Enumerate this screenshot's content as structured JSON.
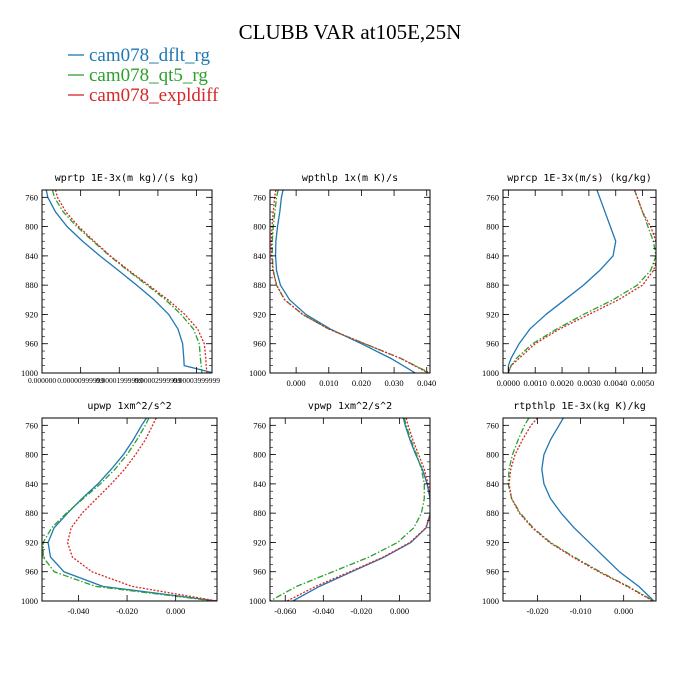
{
  "figure": {
    "title": "CLUBB VAR at105E,25N"
  },
  "legend": [
    {
      "label": "cam078_dflt_rg",
      "color": "#1f77b4",
      "dash": "solid"
    },
    {
      "label": "cam078_qt5_rg",
      "color": "#2ca02c",
      "dash": "dashdot"
    },
    {
      "label": "cam078_expldiff",
      "color": "#d62728",
      "dash": "dot"
    }
  ],
  "chart_data": [
    {
      "type": "line",
      "title": "wprtp  1E-3x(m kg)/(s kg)",
      "ylim": [
        1000,
        750
      ],
      "yticks": [
        760,
        800,
        840,
        880,
        920,
        960,
        1000
      ],
      "xlim": [
        0.0,
        4.4e-05
      ],
      "xticks": [
        0.0,
        1e-05,
        2e-05,
        3e-05,
        4e-05
      ],
      "xtick_labels": [
        "0.000000",
        "0.00000999999",
        "0.00001999999",
        "0.00002999999",
        "0.00003999999"
      ],
      "y": [
        750,
        760,
        780,
        800,
        820,
        840,
        860,
        880,
        900,
        920,
        940,
        960,
        980,
        990,
        1000
      ],
      "series": [
        {
          "name": "cam078_dflt_rg",
          "x": [
            1.1e-06,
            1.5e-06,
            3.5e-06,
            6.5e-06,
            1.05e-05,
            1.5e-05,
            1.98e-05,
            2.45e-05,
            2.9e-05,
            3.28e-05,
            3.52e-05,
            3.64e-05,
            3.67e-05,
            3.68e-05,
            4.45e-05
          ]
        },
        {
          "name": "cam078_qt5_rg",
          "x": [
            2.7e-06,
            3.2e-06,
            5.5e-06,
            9e-06,
            1.32e-05,
            1.75e-05,
            2.22e-05,
            2.72e-05,
            3.2e-05,
            3.6e-05,
            3.92e-05,
            4.07e-05,
            4.1e-05,
            4.12e-05,
            4.14e-05
          ]
        },
        {
          "name": "cam078_expldiff",
          "x": [
            3.5e-06,
            4e-06,
            6.2e-06,
            9.5e-06,
            1.35e-05,
            1.77e-05,
            2.25e-05,
            2.76e-05,
            3.26e-05,
            3.7e-05,
            4.03e-05,
            4.2e-05,
            4.24e-05,
            4.25e-05,
            4.27e-05
          ]
        }
      ]
    },
    {
      "type": "line",
      "title": "wpthlp  1x(m K)/s",
      "ylim": [
        1000,
        750
      ],
      "yticks": [
        760,
        800,
        840,
        880,
        920,
        960,
        1000
      ],
      "xlim": [
        -0.008,
        0.041
      ],
      "xticks": [
        0.0,
        0.01,
        0.02,
        0.03,
        0.04
      ],
      "xtick_labels": [
        "0.000",
        "0.010",
        "0.020",
        "0.030",
        "0.040"
      ],
      "y": [
        750,
        760,
        780,
        800,
        820,
        840,
        860,
        880,
        900,
        920,
        940,
        960,
        980,
        1000
      ],
      "series": [
        {
          "name": "cam078_dflt_rg",
          "x": [
            -0.004,
            -0.0045,
            -0.005,
            -0.0057,
            -0.0062,
            -0.0063,
            -0.006,
            -0.0048,
            -0.002,
            0.003,
            0.0105,
            0.02,
            0.029,
            0.0365
          ]
        },
        {
          "name": "cam078_qt5_rg",
          "x": [
            -0.0055,
            -0.006,
            -0.0065,
            -0.007,
            -0.0073,
            -0.0073,
            -0.007,
            -0.006,
            -0.0035,
            0.002,
            0.01,
            0.021,
            0.032,
            0.041
          ]
        },
        {
          "name": "cam078_expldiff",
          "x": [
            -0.0062,
            -0.0066,
            -0.007,
            -0.0074,
            -0.0076,
            -0.0075,
            -0.0071,
            -0.006,
            -0.0035,
            0.002,
            0.01,
            0.021,
            0.032,
            0.0405
          ]
        }
      ]
    },
    {
      "type": "line",
      "title": "wprcp  1E-3x(m/s) (kg/kg)",
      "ylim": [
        1000,
        750
      ],
      "yticks": [
        760,
        800,
        840,
        880,
        920,
        960,
        1000
      ],
      "xlim": [
        -0.0002,
        0.0055
      ],
      "xticks": [
        0.0,
        0.001,
        0.002,
        0.003,
        0.004,
        0.005
      ],
      "xtick_labels": [
        "0.0000",
        "0.0010",
        "0.0020",
        "0.0030",
        "0.0040",
        "0.0050"
      ],
      "y": [
        750,
        760,
        780,
        800,
        820,
        840,
        860,
        880,
        900,
        920,
        940,
        960,
        980,
        990,
        1000
      ],
      "series": [
        {
          "name": "cam078_dflt_rg",
          "x": [
            0.0033,
            0.0034,
            0.0036,
            0.0038,
            0.004,
            0.0039,
            0.0034,
            0.0028,
            0.0021,
            0.0014,
            0.0008,
            0.0004,
            0.0001,
            0.0,
            0.0
          ]
        },
        {
          "name": "cam078_qt5_rg",
          "x": [
            0.0047,
            0.0048,
            0.005,
            0.0052,
            0.0054,
            0.0055,
            0.0053,
            0.0048,
            0.0039,
            0.0028,
            0.0018,
            0.0009,
            0.0003,
            0.0001,
            0.0
          ]
        },
        {
          "name": "cam078_expldiff",
          "x": [
            0.0047,
            0.0048,
            0.005,
            0.0053,
            0.0055,
            0.0056,
            0.0054,
            0.005,
            0.0041,
            0.003,
            0.0019,
            0.001,
            0.0004,
            0.0001,
            0.0
          ]
        }
      ]
    },
    {
      "type": "line",
      "title": "upwp  1xm^2/s^2",
      "ylim": [
        1000,
        750
      ],
      "yticks": [
        760,
        800,
        840,
        880,
        920,
        960,
        1000
      ],
      "xlim": [
        -0.055,
        0.017
      ],
      "xticks": [
        -0.04,
        -0.02,
        0.0
      ],
      "xtick_labels": [
        "-0.040",
        "-0.020",
        "0.000"
      ],
      "y": [
        750,
        760,
        780,
        800,
        820,
        840,
        860,
        880,
        900,
        920,
        940,
        960,
        980,
        1000
      ],
      "series": [
        {
          "name": "cam078_dflt_rg",
          "x": [
            -0.012,
            -0.014,
            -0.0175,
            -0.0215,
            -0.0265,
            -0.032,
            -0.0385,
            -0.0445,
            -0.05,
            -0.0525,
            -0.0515,
            -0.046,
            -0.03,
            0.017
          ]
        },
        {
          "name": "cam078_qt5_rg",
          "x": [
            -0.011,
            -0.0125,
            -0.016,
            -0.02,
            -0.025,
            -0.031,
            -0.038,
            -0.045,
            -0.051,
            -0.0545,
            -0.0545,
            -0.05,
            -0.033,
            0.016
          ]
        },
        {
          "name": "cam078_expldiff",
          "x": [
            -0.008,
            -0.0095,
            -0.0125,
            -0.0165,
            -0.021,
            -0.0265,
            -0.0325,
            -0.0385,
            -0.043,
            -0.0445,
            -0.0425,
            -0.0345,
            -0.018,
            0.017
          ]
        }
      ]
    },
    {
      "type": "line",
      "title": "vpwp  1xm^2/s^2",
      "ylim": [
        1000,
        750
      ],
      "yticks": [
        760,
        800,
        840,
        880,
        920,
        960,
        1000
      ],
      "xlim": [
        -0.068,
        0.016
      ],
      "xticks": [
        -0.06,
        -0.04,
        -0.02,
        0.0
      ],
      "xtick_labels": [
        "-0.060",
        "-0.040",
        "-0.020",
        "0.000"
      ],
      "y": [
        750,
        760,
        780,
        800,
        820,
        840,
        860,
        880,
        900,
        920,
        940,
        960,
        980,
        1000
      ],
      "series": [
        {
          "name": "cam078_dflt_rg",
          "x": [
            0.002,
            0.003,
            0.0055,
            0.0085,
            0.012,
            0.0145,
            0.016,
            0.0162,
            0.014,
            0.006,
            -0.008,
            -0.025,
            -0.042,
            -0.056
          ]
        },
        {
          "name": "cam078_qt5_rg",
          "x": [
            0.0025,
            0.0035,
            0.006,
            0.009,
            0.0115,
            0.013,
            0.013,
            0.0115,
            0.0075,
            -0.001,
            -0.016,
            -0.035,
            -0.054,
            -0.068
          ]
        },
        {
          "name": "cam078_expldiff",
          "x": [
            0.0035,
            0.0045,
            0.007,
            0.01,
            0.013,
            0.015,
            0.0162,
            0.0162,
            0.0138,
            0.0055,
            -0.0085,
            -0.026,
            -0.044,
            -0.059
          ]
        }
      ]
    },
    {
      "type": "line",
      "title": "rtpthlp  1E-3x(kg K)/kg",
      "ylim": [
        1000,
        750
      ],
      "yticks": [
        760,
        800,
        840,
        880,
        920,
        960,
        1000
      ],
      "xlim": [
        -0.028,
        0.0075
      ],
      "xticks": [
        -0.02,
        -0.01,
        0.0
      ],
      "xtick_labels": [
        "-0.020",
        "-0.010",
        "0.000"
      ],
      "y": [
        750,
        760,
        780,
        800,
        820,
        840,
        860,
        880,
        900,
        920,
        940,
        960,
        980,
        1000
      ],
      "series": [
        {
          "name": "cam078_dflt_rg",
          "x": [
            -0.014,
            -0.015,
            -0.017,
            -0.0185,
            -0.019,
            -0.0185,
            -0.017,
            -0.0145,
            -0.0115,
            -0.008,
            -0.0045,
            -0.001,
            0.0035,
            0.007
          ]
        },
        {
          "name": "cam078_qt5_rg",
          "x": [
            -0.022,
            -0.023,
            -0.0245,
            -0.0258,
            -0.0266,
            -0.0268,
            -0.026,
            -0.024,
            -0.021,
            -0.017,
            -0.0115,
            -0.0055,
            0.001,
            0.007
          ]
        },
        {
          "name": "cam078_expldiff",
          "x": [
            -0.02,
            -0.0215,
            -0.0235,
            -0.0252,
            -0.0262,
            -0.0266,
            -0.026,
            -0.0242,
            -0.0212,
            -0.0172,
            -0.0118,
            -0.0058,
            0.0008,
            0.0068
          ]
        }
      ]
    }
  ]
}
